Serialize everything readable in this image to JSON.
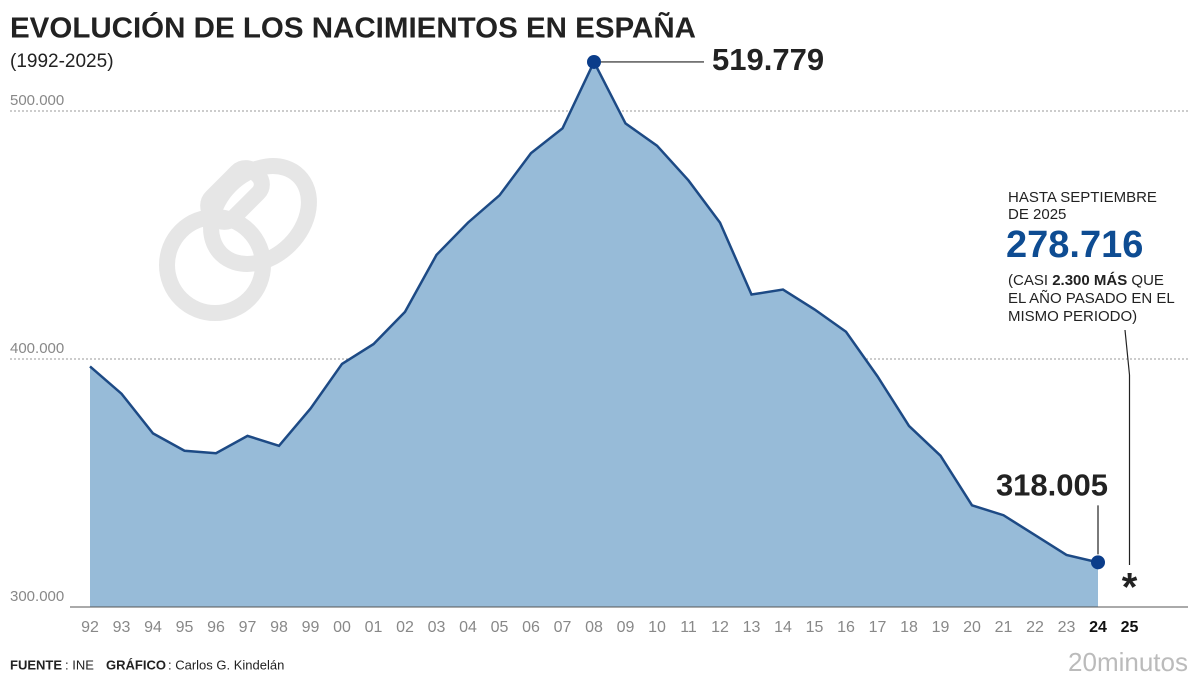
{
  "chart_data": {
    "type": "area",
    "title": "EVOLUCIÓN DE LOS NACIMIENTOS EN ESPAÑA",
    "subtitle": "(1992-2025)",
    "categories": [
      "92",
      "93",
      "94",
      "95",
      "96",
      "97",
      "98",
      "99",
      "00",
      "01",
      "02",
      "03",
      "04",
      "05",
      "06",
      "07",
      "08",
      "09",
      "10",
      "11",
      "12",
      "13",
      "14",
      "15",
      "16",
      "17",
      "18",
      "19",
      "20",
      "21",
      "22",
      "23",
      "24",
      "25"
    ],
    "values": [
      397000,
      386000,
      370000,
      363000,
      362000,
      369000,
      365000,
      380000,
      398000,
      406000,
      419000,
      442000,
      455000,
      466000,
      483000,
      493000,
      519779,
      495000,
      486000,
      472000,
      455000,
      426000,
      428000,
      420000,
      411000,
      393000,
      373000,
      361000,
      341000,
      337000,
      329000,
      321000,
      318005,
      null
    ],
    "value_labels": [
      null,
      null,
      null,
      null,
      null,
      null,
      null,
      null,
      null,
      null,
      null,
      null,
      null,
      null,
      null,
      null,
      "519.779",
      null,
      null,
      null,
      null,
      null,
      null,
      null,
      null,
      null,
      null,
      null,
      null,
      null,
      null,
      null,
      "318.005",
      null
    ],
    "highlight_categories": [
      "24",
      "25"
    ],
    "pending_marker": "*",
    "color": "#97bbd8",
    "line_color": "#1d4a85",
    "dot_color": "#0b3d8a",
    "ylim": [
      300000,
      520000
    ],
    "yticks": [
      {
        "value": 300000,
        "label": "300.000"
      },
      {
        "value": 400000,
        "label": "400.000"
      },
      {
        "value": 500000,
        "label": "500.000"
      }
    ],
    "grid": true,
    "annotation": {
      "lines": [
        "HASTA SEPTIEMBRE",
        "DE 2025"
      ],
      "value": "278.716",
      "detail": [
        [
          "(CASI ",
          "2.300 MÁS",
          " QUE"
        ],
        [
          "EL AÑO PASADO EN EL"
        ],
        [
          "MISMO PERIODO)"
        ]
      ]
    }
  },
  "footer": {
    "source_label": "FUENTE",
    "source": ": INE",
    "credit_label": "GRÁFICO",
    "credit": ": Carlos G. Kindelán",
    "logo": "20minutos"
  }
}
